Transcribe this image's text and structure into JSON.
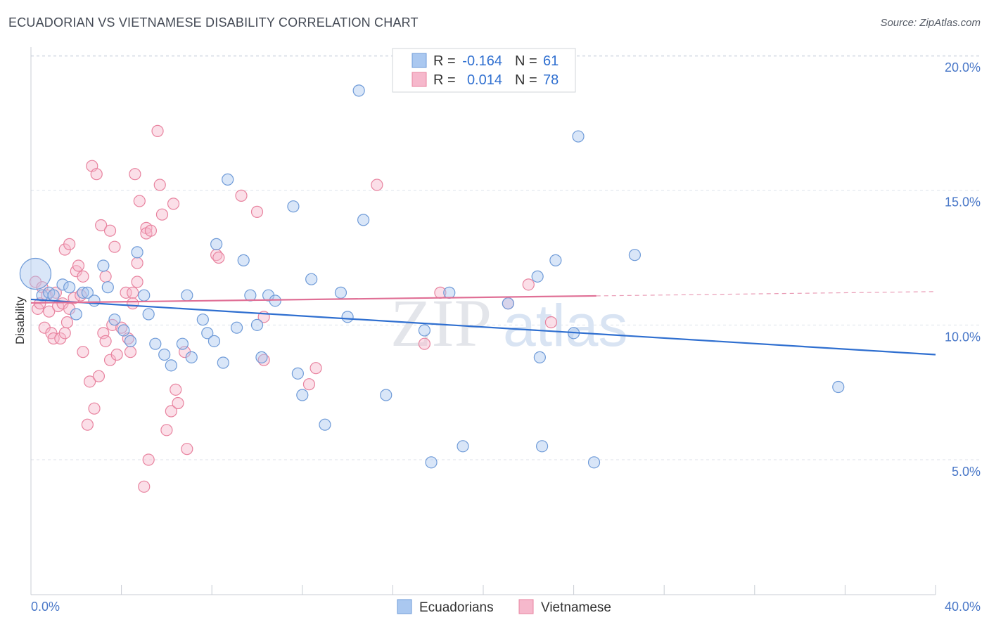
{
  "header": {
    "title": "ECUADORIAN VS VIETNAMESE DISABILITY CORRELATION CHART",
    "source": "Source: ZipAtlas.com"
  },
  "legend_top": {
    "rows": [
      {
        "r_label": "R = ",
        "r_value": "-0.164",
        "n_label": "N = ",
        "n_value": "61"
      },
      {
        "r_label": "R = ",
        "r_value": "0.014",
        "n_label": "N = ",
        "n_value": "78"
      }
    ]
  },
  "watermark": {
    "zip": "ZIP",
    "atlas": "atlas"
  },
  "colors": {
    "blue_fill": "#aac8f0",
    "blue_stroke": "#6f9bd8",
    "blue_line": "#2f6fd0",
    "pink_fill": "#f6b8cc",
    "pink_stroke": "#e8839f",
    "pink_line": "#e07096",
    "tick_text": "#4a78c8",
    "grid": "#dde2ea"
  },
  "chart_data": {
    "type": "scatter",
    "title": "ECUADORIAN VS VIETNAMESE DISABILITY CORRELATION CHART",
    "xlabel": "",
    "ylabel": "Disability",
    "xlim": [
      0,
      40
    ],
    "ylim": [
      0,
      21
    ],
    "x_tick_labels": [
      "0.0%",
      "40.0%"
    ],
    "y_ticks": [
      5,
      10,
      15,
      20
    ],
    "y_tick_labels": [
      "5.0%",
      "10.0%",
      "15.0%",
      "20.0%"
    ],
    "grid": true,
    "legend_position": "top-center",
    "series": [
      {
        "name": "Ecuadorians",
        "r": -0.164,
        "n": 61,
        "trend": {
          "x": [
            0,
            40
          ],
          "y": [
            10.95,
            8.9
          ]
        },
        "points": [
          {
            "x": 0.2,
            "y": 11.9,
            "big": true
          },
          {
            "x": 0.5,
            "y": 11.1
          },
          {
            "x": 0.8,
            "y": 11.2
          },
          {
            "x": 1.0,
            "y": 11.1
          },
          {
            "x": 1.4,
            "y": 11.5
          },
          {
            "x": 1.7,
            "y": 11.4
          },
          {
            "x": 2.0,
            "y": 10.4
          },
          {
            "x": 2.3,
            "y": 11.2
          },
          {
            "x": 2.5,
            "y": 11.2
          },
          {
            "x": 2.8,
            "y": 10.9
          },
          {
            "x": 3.2,
            "y": 12.2
          },
          {
            "x": 3.4,
            "y": 11.4
          },
          {
            "x": 3.7,
            "y": 10.2
          },
          {
            "x": 4.1,
            "y": 9.8
          },
          {
            "x": 4.4,
            "y": 9.4
          },
          {
            "x": 4.7,
            "y": 12.7
          },
          {
            "x": 5.0,
            "y": 11.1
          },
          {
            "x": 5.2,
            "y": 10.4
          },
          {
            "x": 5.5,
            "y": 9.3
          },
          {
            "x": 5.9,
            "y": 8.9
          },
          {
            "x": 6.2,
            "y": 8.5
          },
          {
            "x": 6.7,
            "y": 9.3
          },
          {
            "x": 6.9,
            "y": 11.1
          },
          {
            "x": 7.1,
            "y": 8.8
          },
          {
            "x": 7.6,
            "y": 10.2
          },
          {
            "x": 7.8,
            "y": 9.7
          },
          {
            "x": 8.1,
            "y": 9.4
          },
          {
            "x": 8.2,
            "y": 13.0
          },
          {
            "x": 8.5,
            "y": 8.6
          },
          {
            "x": 8.7,
            "y": 15.4
          },
          {
            "x": 9.1,
            "y": 9.9
          },
          {
            "x": 9.4,
            "y": 12.4
          },
          {
            "x": 9.7,
            "y": 11.1
          },
          {
            "x": 10.0,
            "y": 10.0
          },
          {
            "x": 10.2,
            "y": 8.8
          },
          {
            "x": 10.5,
            "y": 11.1
          },
          {
            "x": 10.8,
            "y": 10.9
          },
          {
            "x": 11.6,
            "y": 14.4
          },
          {
            "x": 11.8,
            "y": 8.2
          },
          {
            "x": 12.0,
            "y": 7.4
          },
          {
            "x": 12.4,
            "y": 11.7
          },
          {
            "x": 13.0,
            "y": 6.3
          },
          {
            "x": 13.7,
            "y": 11.2
          },
          {
            "x": 14.0,
            "y": 10.3
          },
          {
            "x": 14.5,
            "y": 18.7
          },
          {
            "x": 14.7,
            "y": 13.9
          },
          {
            "x": 15.7,
            "y": 7.4
          },
          {
            "x": 17.4,
            "y": 9.8
          },
          {
            "x": 17.7,
            "y": 4.9
          },
          {
            "x": 18.5,
            "y": 11.2
          },
          {
            "x": 19.1,
            "y": 5.5
          },
          {
            "x": 21.1,
            "y": 10.8
          },
          {
            "x": 22.4,
            "y": 11.8
          },
          {
            "x": 22.5,
            "y": 8.8
          },
          {
            "x": 22.6,
            "y": 5.5
          },
          {
            "x": 23.2,
            "y": 12.4
          },
          {
            "x": 24.0,
            "y": 9.7
          },
          {
            "x": 24.2,
            "y": 17.0
          },
          {
            "x": 24.9,
            "y": 4.9
          },
          {
            "x": 26.7,
            "y": 12.6
          },
          {
            "x": 35.7,
            "y": 7.7
          }
        ]
      },
      {
        "name": "Vietnamese",
        "r": 0.014,
        "n": 78,
        "trend": {
          "x": [
            0,
            25
          ],
          "y": [
            10.82,
            11.08
          ]
        },
        "trend_dashed": {
          "x": [
            25,
            40
          ],
          "y": [
            11.08,
            11.24
          ]
        },
        "points": [
          {
            "x": 0.2,
            "y": 11.6
          },
          {
            "x": 0.3,
            "y": 10.6
          },
          {
            "x": 0.4,
            "y": 10.8
          },
          {
            "x": 0.5,
            "y": 11.4
          },
          {
            "x": 0.6,
            "y": 9.9
          },
          {
            "x": 0.7,
            "y": 11.1
          },
          {
            "x": 0.8,
            "y": 10.5
          },
          {
            "x": 0.9,
            "y": 9.7
          },
          {
            "x": 1.0,
            "y": 9.5
          },
          {
            "x": 1.1,
            "y": 11.2
          },
          {
            "x": 1.2,
            "y": 10.7
          },
          {
            "x": 1.3,
            "y": 9.5
          },
          {
            "x": 1.4,
            "y": 10.8
          },
          {
            "x": 1.5,
            "y": 12.8
          },
          {
            "x": 1.5,
            "y": 9.7
          },
          {
            "x": 1.6,
            "y": 10.1
          },
          {
            "x": 1.7,
            "y": 10.6
          },
          {
            "x": 1.7,
            "y": 13.0
          },
          {
            "x": 1.9,
            "y": 11.0
          },
          {
            "x": 2.0,
            "y": 12.0
          },
          {
            "x": 2.1,
            "y": 12.2
          },
          {
            "x": 2.2,
            "y": 11.1
          },
          {
            "x": 2.3,
            "y": 11.8
          },
          {
            "x": 2.3,
            "y": 9.0
          },
          {
            "x": 2.5,
            "y": 6.3
          },
          {
            "x": 2.6,
            "y": 7.9
          },
          {
            "x": 2.7,
            "y": 15.9
          },
          {
            "x": 2.8,
            "y": 6.9
          },
          {
            "x": 2.9,
            "y": 15.6
          },
          {
            "x": 3.0,
            "y": 8.1
          },
          {
            "x": 3.1,
            "y": 13.7
          },
          {
            "x": 3.2,
            "y": 9.7
          },
          {
            "x": 3.3,
            "y": 9.4
          },
          {
            "x": 3.3,
            "y": 11.8
          },
          {
            "x": 3.5,
            "y": 13.5
          },
          {
            "x": 3.5,
            "y": 8.7
          },
          {
            "x": 3.6,
            "y": 10.0
          },
          {
            "x": 3.7,
            "y": 12.9
          },
          {
            "x": 3.8,
            "y": 8.9
          },
          {
            "x": 4.0,
            "y": 9.9
          },
          {
            "x": 4.2,
            "y": 11.2
          },
          {
            "x": 4.3,
            "y": 9.5
          },
          {
            "x": 4.4,
            "y": 9.0
          },
          {
            "x": 4.5,
            "y": 11.2
          },
          {
            "x": 4.5,
            "y": 10.8
          },
          {
            "x": 4.6,
            "y": 15.6
          },
          {
            "x": 4.7,
            "y": 11.6
          },
          {
            "x": 4.7,
            "y": 12.3
          },
          {
            "x": 4.8,
            "y": 14.6
          },
          {
            "x": 5.0,
            "y": 4.0
          },
          {
            "x": 5.1,
            "y": 13.6
          },
          {
            "x": 5.1,
            "y": 13.4
          },
          {
            "x": 5.2,
            "y": 5.0
          },
          {
            "x": 5.3,
            "y": 13.5
          },
          {
            "x": 5.6,
            "y": 17.2
          },
          {
            "x": 5.7,
            "y": 15.2
          },
          {
            "x": 5.8,
            "y": 14.1
          },
          {
            "x": 6.0,
            "y": 6.1
          },
          {
            "x": 6.2,
            "y": 6.8
          },
          {
            "x": 6.3,
            "y": 14.5
          },
          {
            "x": 6.4,
            "y": 7.6
          },
          {
            "x": 6.5,
            "y": 7.1
          },
          {
            "x": 6.8,
            "y": 9.0
          },
          {
            "x": 6.9,
            "y": 5.4
          },
          {
            "x": 8.2,
            "y": 12.6
          },
          {
            "x": 8.3,
            "y": 12.5
          },
          {
            "x": 9.3,
            "y": 14.8
          },
          {
            "x": 10.0,
            "y": 14.2
          },
          {
            "x": 10.3,
            "y": 8.7
          },
          {
            "x": 10.3,
            "y": 10.3
          },
          {
            "x": 12.3,
            "y": 7.8
          },
          {
            "x": 12.6,
            "y": 8.4
          },
          {
            "x": 15.3,
            "y": 15.2
          },
          {
            "x": 17.4,
            "y": 9.3
          },
          {
            "x": 18.1,
            "y": 11.2
          },
          {
            "x": 21.1,
            "y": 10.8
          },
          {
            "x": 22.0,
            "y": 11.5
          },
          {
            "x": 23.0,
            "y": 10.1
          }
        ]
      }
    ]
  }
}
